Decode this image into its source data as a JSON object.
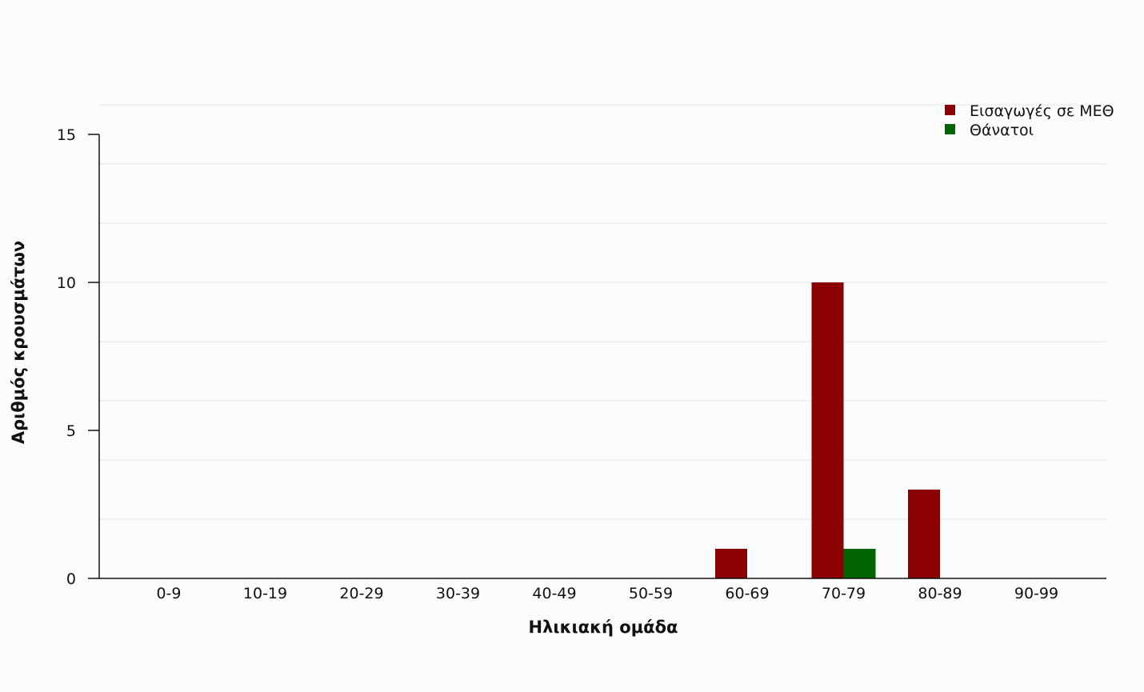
{
  "colors": {
    "background": "#fcfcfc",
    "grid": "#e3e3e3",
    "axis": "#111111",
    "icu": "#8b0000",
    "deaths": "#006400"
  },
  "chart_data": {
    "type": "bar",
    "xlabel": "Ηλικιακή ομάδα",
    "ylabel": "Αριθμός κρουσμάτων",
    "categories": [
      "0-9",
      "10-19",
      "20-29",
      "30-39",
      "40-49",
      "50-59",
      "60-69",
      "70-79",
      "80-89",
      "90-99"
    ],
    "series": [
      {
        "name": "Εισαγωγές σε ΜΕΘ",
        "color": "#8b0000",
        "values": [
          0,
          0,
          0,
          0,
          0,
          0,
          1,
          10,
          3,
          0
        ]
      },
      {
        "name": "Θάνατοι",
        "color": "#006400",
        "values": [
          0,
          0,
          0,
          0,
          0,
          0,
          0,
          1,
          0,
          0
        ]
      }
    ],
    "ylim": [
      0,
      16
    ],
    "yticks": [
      0,
      5,
      10,
      15
    ],
    "grid": true,
    "legend": "top-right"
  }
}
